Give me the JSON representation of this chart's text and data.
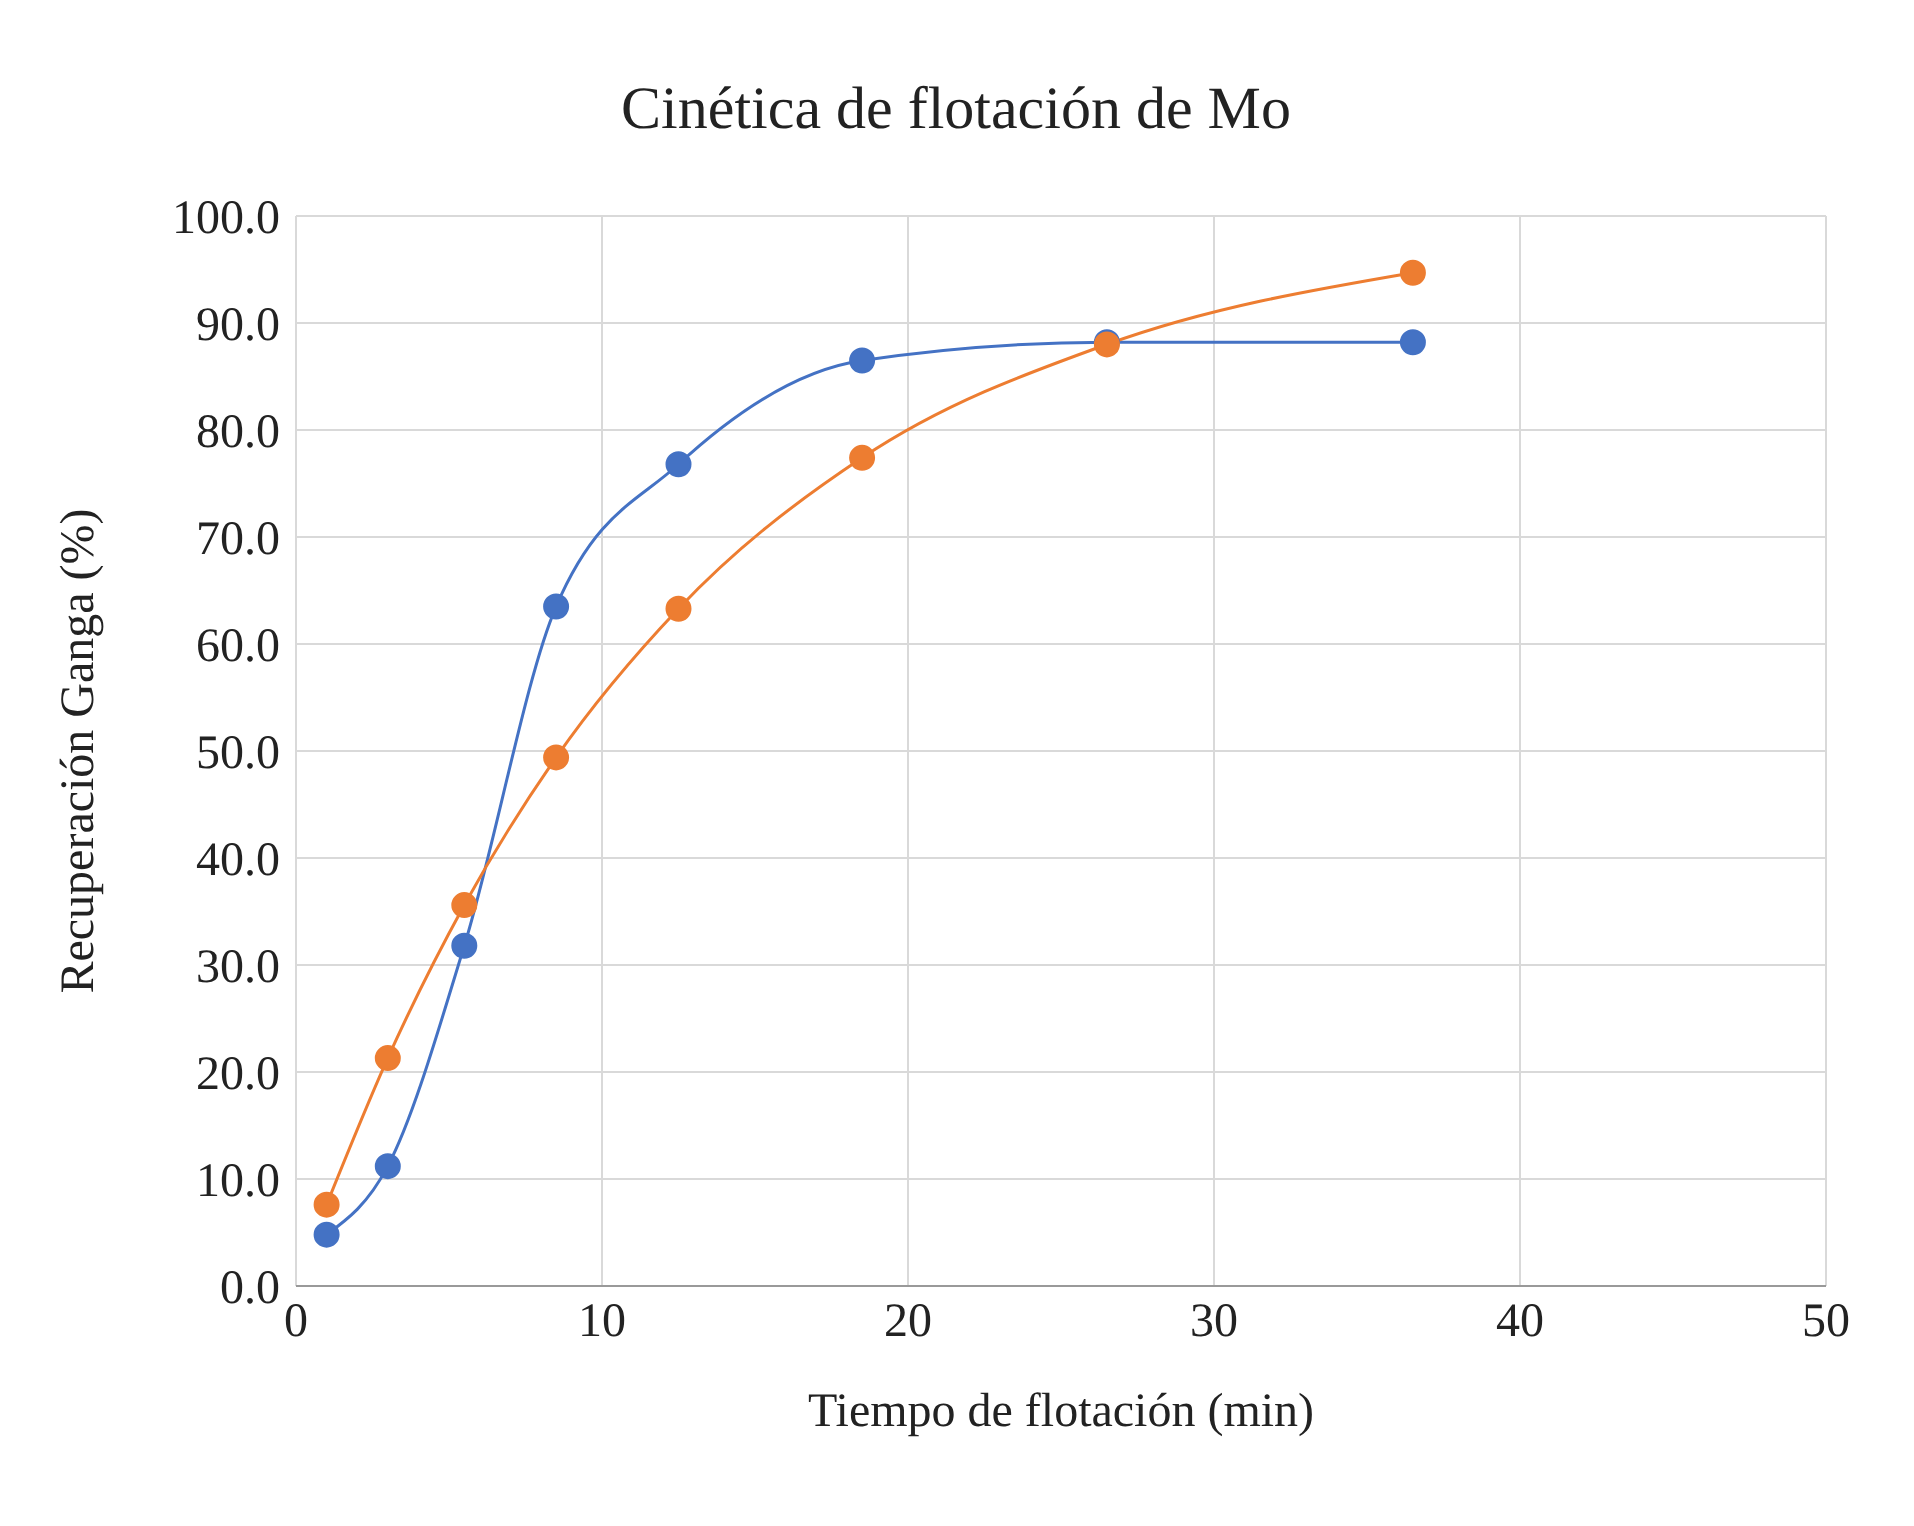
{
  "chart_data": {
    "type": "line",
    "title": "Cinética de flotación de Mo",
    "xlabel": "Tiempo de flotación (min)",
    "ylabel": "Recuperación Ganga (%)",
    "x": [
      1,
      3,
      5.5,
      8.5,
      12.5,
      18.5,
      26.5,
      36.5
    ],
    "series": [
      {
        "color": "#4472c4",
        "values": [
          4.8,
          11.2,
          31.8,
          63.5,
          76.8,
          86.5,
          88.2,
          88.2
        ]
      },
      {
        "color": "#ed7d31",
        "values": [
          7.6,
          21.3,
          35.6,
          49.4,
          63.3,
          77.4,
          88.0,
          94.7
        ]
      }
    ],
    "xlim": [
      0,
      50
    ],
    "xticks": [
      0,
      10,
      20,
      30,
      40,
      50
    ],
    "ylim": [
      0,
      100
    ],
    "yticks": [
      {
        "value": 0,
        "label": "0.0"
      },
      {
        "value": 10,
        "label": "10.0"
      },
      {
        "value": 20,
        "label": "20.0"
      },
      {
        "value": 30,
        "label": "30.0"
      },
      {
        "value": 40,
        "label": "40.0"
      },
      {
        "value": 50,
        "label": "50.0"
      },
      {
        "value": 60,
        "label": "60.0"
      },
      {
        "value": 70,
        "label": "70.0"
      },
      {
        "value": 80,
        "label": "80.0"
      },
      {
        "value": 90,
        "label": "90.0"
      },
      {
        "value": 100,
        "label": "100.0"
      }
    ],
    "grid": true,
    "marker": "circle",
    "line_style": "solid"
  }
}
